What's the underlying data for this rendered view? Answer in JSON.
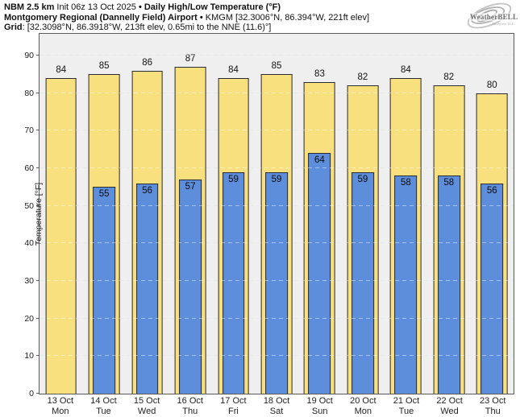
{
  "header": {
    "model": "NBM 2.5 km",
    "init": " Init 06z 13 Oct 2025 ",
    "sep": "•",
    "product": " Daily High/Low Temperature (°F)",
    "station": "Montgomery Regional (Dannelly Field) Airport",
    "station_meta": " KMGM [32.3006°N, 86.394°W, 221ft elev]",
    "grid_label": "Grid",
    "grid_meta": ": [32.3098°N, 86.3918°W, 213ft elev, 0.65mi to the NNE (11.6)°]"
  },
  "logo": {
    "brand_a": "Weather",
    "brand_b": "BELL",
    "sub": "Analytics LLC"
  },
  "chart_data": {
    "type": "bar",
    "title": "Daily High/Low Temperature (°F)",
    "xlabel": "",
    "ylabel": "Temperature [°F]",
    "ylim": [
      0,
      96
    ],
    "yticks": [
      0,
      10,
      20,
      30,
      40,
      50,
      60,
      70,
      80,
      90
    ],
    "grid": "horizontal-dashed",
    "legend": "none",
    "categories": [
      {
        "date": "13 Oct",
        "day": "Mon"
      },
      {
        "date": "14 Oct",
        "day": "Tue"
      },
      {
        "date": "15 Oct",
        "day": "Wed"
      },
      {
        "date": "16 Oct",
        "day": "Thu"
      },
      {
        "date": "17 Oct",
        "day": "Fri"
      },
      {
        "date": "18 Oct",
        "day": "Sat"
      },
      {
        "date": "19 Oct",
        "day": "Sun"
      },
      {
        "date": "20 Oct",
        "day": "Mon"
      },
      {
        "date": "21 Oct",
        "day": "Tue"
      },
      {
        "date": "22 Oct",
        "day": "Wed"
      },
      {
        "date": "23 Oct",
        "day": "Thu"
      }
    ],
    "series": [
      {
        "name": "High",
        "color": "#f9e07e",
        "values": [
          84,
          85,
          86,
          87,
          84,
          85,
          83,
          82,
          84,
          82,
          80
        ]
      },
      {
        "name": "Low",
        "color": "#5c8edc",
        "values": [
          null,
          55,
          56,
          57,
          59,
          59,
          64,
          59,
          58,
          58,
          56
        ]
      }
    ]
  }
}
